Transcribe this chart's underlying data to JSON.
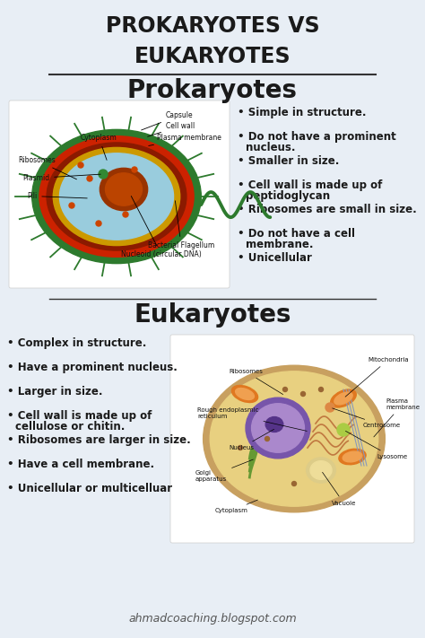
{
  "background_color": "#e8eef5",
  "title": "PROKARYOTES VS\nEUKARYOTES",
  "title_fontsize": 17,
  "title_color": "#1a1a1a",
  "section1_title": "Prokaryotes",
  "section2_title": "Eukaryotes",
  "section_title_fontsize": 20,
  "section_title_color": "#1a1a1a",
  "prokaryote_bullets": [
    "Simple in structure.",
    "Do not have a prominent\n  nucleus.",
    "Smaller in size.",
    "Cell wall is made up of\n  peptidoglycan",
    "Ribosomes are small in size.",
    "Do not have a cell\n  membrane.",
    "Unicellular"
  ],
  "eukaryote_bullets": [
    "Complex in structure.",
    "Have a prominent nucleus.",
    "Larger in size.",
    "Cell wall is made up of\n  cellulose or chitin.",
    "Ribosomes are larger in size.",
    "Have a cell membrane.",
    "Unicellular or multicelluar"
  ],
  "bullet_fontsize": 8.5,
  "bullet_color": "#1a1a1a",
  "footer_text": "ahmadcoaching.blogspot.com",
  "footer_fontsize": 9,
  "footer_color": "#555555",
  "divider_color": "#333333",
  "white_box_color": "#ffffff"
}
